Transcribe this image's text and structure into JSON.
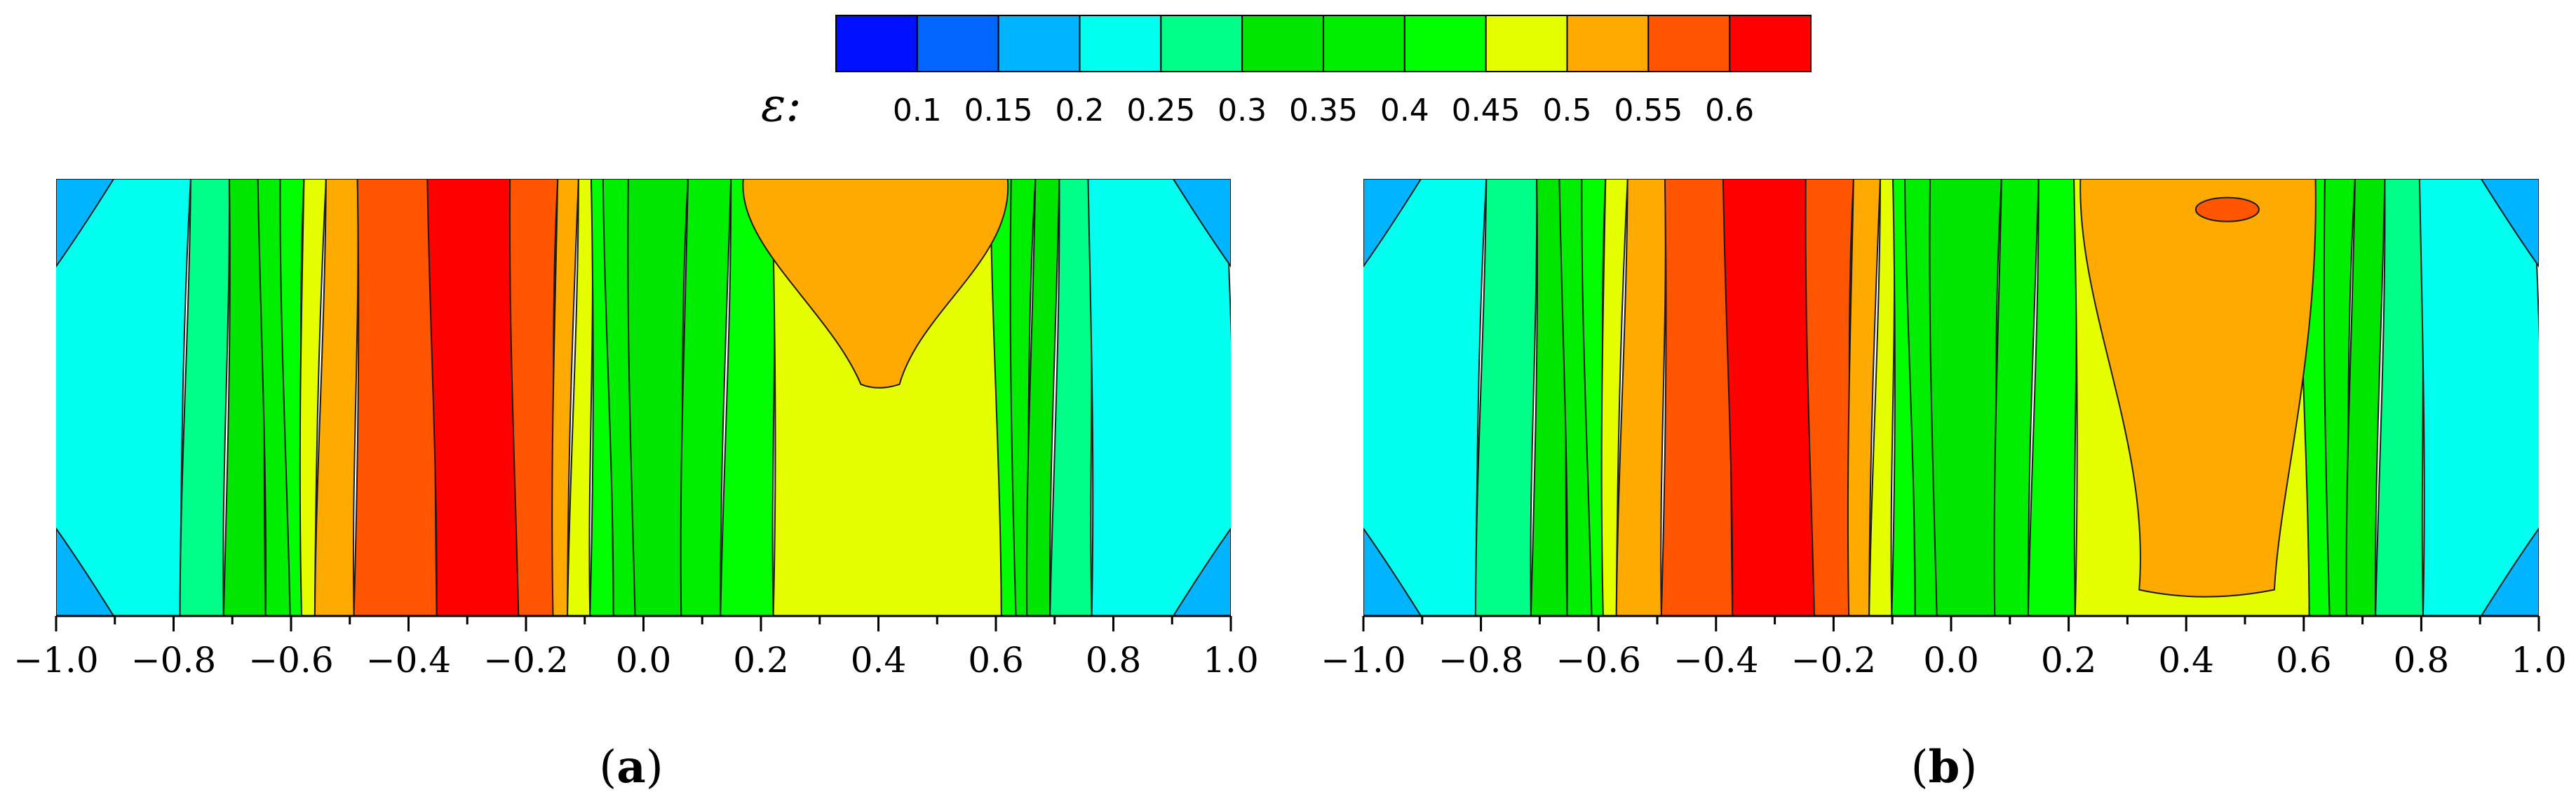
{
  "colorbar": {
    "symbol": "ε:",
    "levels": [
      0.1,
      0.15,
      0.2,
      0.25,
      0.3,
      0.35,
      0.4,
      0.45,
      0.5,
      0.55,
      0.6
    ],
    "labels": [
      "0.1",
      "0.15",
      "0.2",
      "0.25",
      "0.3",
      "0.35",
      "0.4",
      "0.45",
      "0.5",
      "0.55",
      "0.6"
    ],
    "colors": [
      "#0010ff",
      "#0066ff",
      "#00b4ff",
      "#00ffee",
      "#00ff88",
      "#00e600",
      "#00ee00",
      "#00ff00",
      "#e6ff00",
      "#ffaa00",
      "#ff5500",
      "#ff0000"
    ]
  },
  "chart_data": [
    {
      "type": "heatmap",
      "panel": "(a)",
      "panel_letter": "a",
      "x_range": [
        -1.0,
        1.0
      ],
      "x_ticks": [
        "−1.0",
        "−0.8",
        "−0.6",
        "−0.4",
        "−0.2",
        "0.0",
        "0.2",
        "0.4",
        "0.6",
        "0.8",
        "1.0"
      ],
      "bands": [
        {
          "x_min": -1.0,
          "x_max": -0.78,
          "value": 0.225
        },
        {
          "x_min": -0.78,
          "x_max": -0.71,
          "value": 0.275
        },
        {
          "x_min": -0.71,
          "x_max": -0.65,
          "value": 0.325
        },
        {
          "x_min": -0.65,
          "x_max": -0.61,
          "value": 0.375
        },
        {
          "x_min": -0.61,
          "x_max": -0.58,
          "value": 0.425
        },
        {
          "x_min": -0.58,
          "x_max": -0.55,
          "value": 0.475
        },
        {
          "x_min": -0.55,
          "x_max": -0.49,
          "value": 0.525
        },
        {
          "x_min": -0.49,
          "x_max": -0.36,
          "value": 0.575
        },
        {
          "x_min": -0.36,
          "x_max": -0.22,
          "value": 0.625
        },
        {
          "x_min": -0.22,
          "x_max": -0.15,
          "value": 0.575
        },
        {
          "x_min": -0.15,
          "x_max": -0.12,
          "value": 0.525
        },
        {
          "x_min": -0.12,
          "x_max": -0.09,
          "value": 0.475
        },
        {
          "x_min": -0.09,
          "x_max": -0.06,
          "value": 0.425
        },
        {
          "x_min": -0.06,
          "x_max": -0.02,
          "value": 0.375
        },
        {
          "x_min": -0.02,
          "x_max": 0.07,
          "value": 0.325
        },
        {
          "x_min": 0.07,
          "x_max": 0.14,
          "value": 0.375
        },
        {
          "x_min": 0.14,
          "x_max": 0.22,
          "value": 0.425
        },
        {
          "x_min": 0.22,
          "x_max": 0.6,
          "value": 0.475
        },
        {
          "x_min": 0.6,
          "x_max": 0.63,
          "value": 0.425
        },
        {
          "x_min": 0.63,
          "x_max": 0.66,
          "value": 0.375
        },
        {
          "x_min": 0.66,
          "x_max": 0.7,
          "value": 0.325
        },
        {
          "x_min": 0.7,
          "x_max": 0.76,
          "value": 0.275
        },
        {
          "x_min": 0.76,
          "x_max": 1.0,
          "value": 0.225
        }
      ],
      "max_region": {
        "x_center": 0.4,
        "value": 0.525
      }
    },
    {
      "type": "heatmap",
      "panel": "(b)",
      "panel_letter": "b",
      "x_range": [
        -1.0,
        1.0
      ],
      "x_ticks": [
        "−1.0",
        "−0.8",
        "−0.6",
        "−0.4",
        "−0.2",
        "0.0",
        "0.2",
        "0.4",
        "0.6",
        "0.8",
        "1.0"
      ],
      "bands": [
        {
          "x_min": -1.0,
          "x_max": -0.8,
          "value": 0.225
        },
        {
          "x_min": -0.8,
          "x_max": -0.71,
          "value": 0.275
        },
        {
          "x_min": -0.71,
          "x_max": -0.66,
          "value": 0.325
        },
        {
          "x_min": -0.66,
          "x_max": -0.62,
          "value": 0.375
        },
        {
          "x_min": -0.62,
          "x_max": -0.59,
          "value": 0.425
        },
        {
          "x_min": -0.59,
          "x_max": -0.56,
          "value": 0.475
        },
        {
          "x_min": -0.56,
          "x_max": -0.49,
          "value": 0.525
        },
        {
          "x_min": -0.49,
          "x_max": -0.38,
          "value": 0.575
        },
        {
          "x_min": -0.38,
          "x_max": -0.24,
          "value": 0.625
        },
        {
          "x_min": -0.24,
          "x_max": -0.17,
          "value": 0.575
        },
        {
          "x_min": -0.17,
          "x_max": -0.13,
          "value": 0.525
        },
        {
          "x_min": -0.13,
          "x_max": -0.1,
          "value": 0.475
        },
        {
          "x_min": -0.1,
          "x_max": -0.07,
          "value": 0.425
        },
        {
          "x_min": -0.07,
          "x_max": -0.03,
          "value": 0.375
        },
        {
          "x_min": -0.03,
          "x_max": 0.08,
          "value": 0.325
        },
        {
          "x_min": 0.08,
          "x_max": 0.14,
          "value": 0.375
        },
        {
          "x_min": 0.14,
          "x_max": 0.21,
          "value": 0.425
        },
        {
          "x_min": 0.21,
          "x_max": 0.6,
          "value": 0.475
        },
        {
          "x_min": 0.6,
          "x_max": 0.64,
          "value": 0.425
        },
        {
          "x_min": 0.64,
          "x_max": 0.68,
          "value": 0.375
        },
        {
          "x_min": 0.68,
          "x_max": 0.73,
          "value": 0.325
        },
        {
          "x_min": 0.73,
          "x_max": 0.8,
          "value": 0.275
        },
        {
          "x_min": 0.8,
          "x_max": 1.0,
          "value": 0.225
        }
      ],
      "max_region": {
        "x_center": 0.43,
        "value": 0.525
      },
      "local_peak": {
        "x_center": 0.47,
        "value": 0.575
      }
    }
  ]
}
